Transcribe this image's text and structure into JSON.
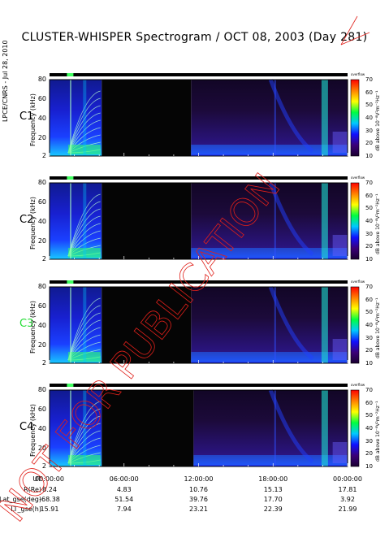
{
  "title": "CLUSTER-WHISPER Spectrogram / OCT 08, 2003 (Day 281)",
  "side_label": "LPCE/CNRS - Jul 28, 2010",
  "watermark": "NOT FOR PUBLICATION",
  "colors": {
    "background": "#ffffff",
    "gap": "#050505",
    "c3_label": "#22dd33",
    "mode_bar": "#000000",
    "watermark": "#e0201a"
  },
  "chart_data": {
    "type": "heatmap",
    "title": "CLUSTER-WHISPER Spectrogram / OCT 08, 2003 (Day 281)",
    "ylabel": "Frequency (kHz)",
    "yticks": [
      "80",
      "60",
      "40",
      "20",
      "2"
    ],
    "ylim": [
      2,
      80
    ],
    "xlim": [
      "00:00:00",
      "24:00:00"
    ],
    "x_ticks": [
      "00:00:00",
      "06:00:00",
      "12:00:00",
      "18:00:00",
      "00:00:00"
    ],
    "colorbar": {
      "label": "dB above 10⁻⁸V²m⁻²Hz⁻¹",
      "ticks": [
        "70",
        "60",
        "50",
        "40",
        "30",
        "20",
        "10"
      ],
      "range": [
        10,
        70
      ],
      "colors": [
        "#1a0030",
        "#3a0078",
        "#1010ff",
        "#00c8ff",
        "#00ff40",
        "#ffff00",
        "#ff8000",
        "#ff0000"
      ]
    },
    "annotation": "overflow",
    "panels": [
      {
        "name": "C1",
        "data_gap_hours": [
          4.2,
          11.4
        ],
        "segments": [
          "00:00-04:12 active",
          "11:24-24:00 active"
        ]
      },
      {
        "name": "C2",
        "data_gap_hours": [
          4.2,
          11.4
        ],
        "segments": [
          "00:00-04:12 active",
          "11:24-24:00 active"
        ]
      },
      {
        "name": "C3",
        "data_gap_hours": [
          4.2,
          11.4
        ],
        "segments": [
          "00:00-04:12 active",
          "11:24-24:00 active"
        ]
      },
      {
        "name": "C4",
        "data_gap_hours": [
          4.2,
          11.6
        ],
        "segments": [
          "00:00-04:12 active",
          "11:36-24:00 active"
        ]
      }
    ],
    "orbit": {
      "UT": [
        "00:00:00",
        "06:00:00",
        "12:00:00",
        "18:00:00",
        "00:00:00"
      ],
      "R(Re)": [
        "8.24",
        "4.83",
        "10.76",
        "15.13",
        "17.81"
      ],
      "Lat_gse(deg)": [
        "-68.38",
        "51.54",
        "39.76",
        "17.70",
        "3.92"
      ],
      "LT_gse(h)": [
        "15.91",
        "7.94",
        "23.21",
        "22.39",
        "21.99"
      ]
    }
  },
  "orbit_labels": [
    "UT",
    "R(Re)",
    "Lat_gse(deg)",
    "LT_gse(h)"
  ]
}
